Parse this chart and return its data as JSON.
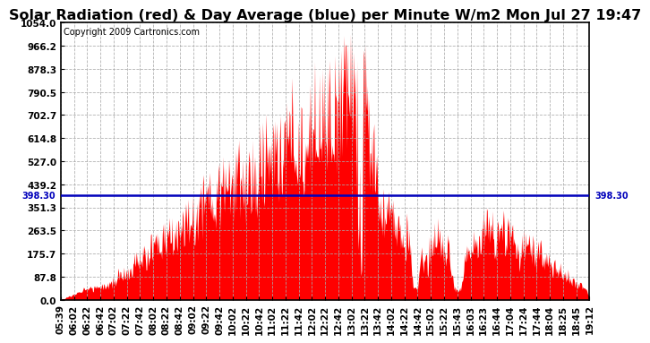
{
  "title": "Solar Radiation (red) & Day Average (blue) per Minute W/m2 Mon Jul 27 19:47",
  "copyright": "Copyright 2009 Cartronics.com",
  "y_ticks": [
    0.0,
    87.8,
    175.7,
    263.5,
    351.3,
    439.2,
    527.0,
    614.8,
    702.7,
    790.5,
    878.3,
    966.2,
    1054.0
  ],
  "ymin": 0.0,
  "ymax": 1054.0,
  "day_average": 398.3,
  "fill_color": "#ff0000",
  "avg_line_color": "#0000bb",
  "bg_color": "white",
  "grid_color": "#aaaaaa",
  "x_labels": [
    "05:39",
    "06:02",
    "06:22",
    "06:42",
    "07:02",
    "07:22",
    "07:42",
    "08:02",
    "08:22",
    "08:42",
    "09:02",
    "09:22",
    "09:42",
    "10:02",
    "10:22",
    "10:42",
    "11:02",
    "11:22",
    "11:42",
    "12:02",
    "12:22",
    "12:42",
    "13:02",
    "13:22",
    "13:42",
    "14:02",
    "14:22",
    "14:42",
    "15:02",
    "15:22",
    "15:43",
    "16:03",
    "16:23",
    "16:44",
    "17:04",
    "17:24",
    "17:44",
    "18:04",
    "18:25",
    "18:45",
    "19:12"
  ],
  "title_fontsize": 11.5,
  "copyright_fontsize": 7,
  "tick_fontsize": 7.5,
  "avg_label": "398.30"
}
